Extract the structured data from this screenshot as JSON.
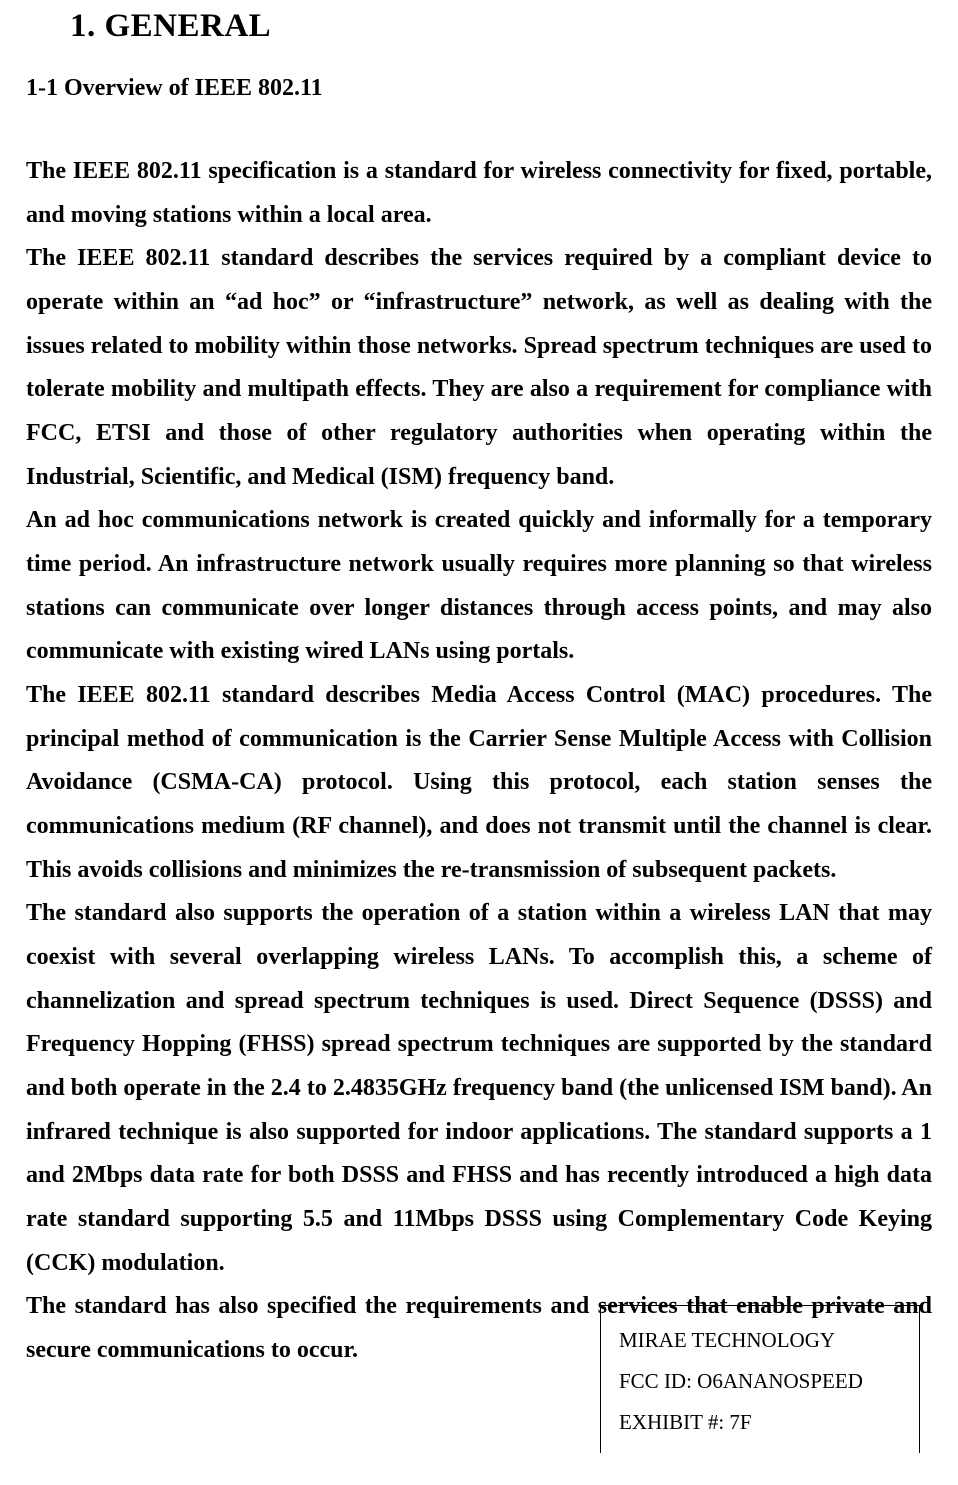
{
  "title": "1. GENERAL",
  "section_heading": "1-1 Overview of IEEE 802.11",
  "body": "The IEEE 802.11 specification is a standard for wireless connectivity for fixed, portable, and moving stations within a local area.\nThe IEEE 802.11 standard describes the services required by a compliant device to operate within an “ad hoc” or “infrastructure” network, as well as dealing with the issues related to mobility within those networks. Spread spectrum techniques are used to tolerate mobility and multipath effects. They are also a requirement for compliance with FCC, ETSI and those of other regulatory authorities when operating within the Industrial, Scientific, and Medical (ISM) frequency band.\nAn ad hoc communications network is created quickly and informally for a temporary time period. An infrastructure network usually requires more planning so that wireless stations can communicate over longer distances through access points, and may also communicate with existing wired LANs using portals.\nThe IEEE 802.11 standard describes Media Access Control (MAC) procedures. The principal method of communication is the Carrier Sense Multiple Access with Collision Avoidance (CSMA-CA) protocol. Using this protocol, each station senses the communications medium (RF channel), and does not transmit until the channel is clear.  This avoids collisions and minimizes the re-transmission of subsequent packets.\nThe standard also supports the operation of a station within a wireless LAN that may coexist with several overlapping wireless LANs. To accomplish this, a scheme of channelization and spread spectrum techniques is used. Direct Sequence (DSSS) and Frequency Hopping (FHSS) spread spectrum techniques are supported by the standard and both operate in the 2.4 to 2.4835GHz frequency band (the unlicensed ISM band). An infrared technique is also supported for indoor applications. The standard supports a 1 and 2Mbps data rate for both DSSS and FHSS and has recently introduced a high data rate standard supporting 5.5 and 11Mbps DSSS using Complementary Code Keying (CCK) modulation.\nThe standard has also specified the requirements and services that enable private and secure communications to occur.",
  "footer": {
    "line1": "MIRAE TECHNOLOGY",
    "line2": "FCC ID:  O6ANANOSPEED",
    "line3": "EXHIBIT #: 7F"
  }
}
